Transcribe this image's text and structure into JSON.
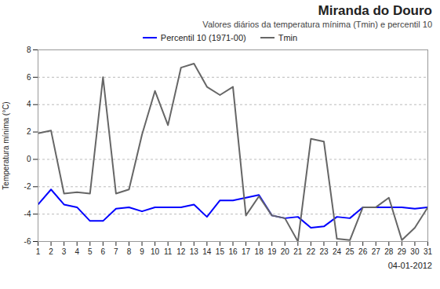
{
  "chart_data": {
    "type": "line",
    "title": "Miranda do Douro",
    "subtitle": "Valores diários da temperatura mínima (Tmin) e percentil 10",
    "annotations": [
      "04-01-2012"
    ],
    "ylabel": "Temperatura mínima (°C)",
    "x": [
      1,
      2,
      3,
      4,
      5,
      6,
      7,
      8,
      9,
      10,
      11,
      12,
      13,
      14,
      15,
      16,
      17,
      18,
      19,
      20,
      21,
      22,
      23,
      24,
      25,
      26,
      27,
      28,
      29,
      30,
      31
    ],
    "series": [
      {
        "name": "Percentil 10 (1971-00)",
        "color": "#0000ff",
        "values": [
          -3.3,
          -2.2,
          -3.3,
          -3.5,
          -4.5,
          -4.5,
          -3.6,
          -3.5,
          -3.8,
          -3.5,
          -3.5,
          -3.5,
          -3.3,
          -4.2,
          -3.0,
          -3.0,
          -2.8,
          -2.6,
          -4.1,
          -4.3,
          -4.2,
          -5.0,
          -4.9,
          -4.2,
          -4.3,
          -3.5,
          -3.5,
          -3.5,
          -3.5,
          -3.6,
          -3.5
        ]
      },
      {
        "name": "Tmin",
        "color": "#666666",
        "values": [
          1.9,
          2.1,
          -2.5,
          -2.4,
          -2.5,
          6.0,
          -2.5,
          -2.2,
          1.8,
          5.0,
          2.5,
          6.7,
          7.0,
          5.3,
          4.7,
          5.3,
          -4.1,
          -2.7,
          -4.1,
          -4.3,
          -6.0,
          1.5,
          1.3,
          -5.8,
          -5.9,
          -3.5,
          -3.5,
          -2.8,
          -5.9,
          -5.0,
          -3.5
        ]
      }
    ],
    "xlim": [
      1,
      31
    ],
    "xticks": [
      1,
      2,
      3,
      4,
      5,
      6,
      7,
      8,
      9,
      10,
      11,
      12,
      13,
      14,
      15,
      16,
      17,
      18,
      19,
      20,
      21,
      22,
      23,
      24,
      25,
      26,
      27,
      28,
      29,
      30,
      31
    ],
    "ylim": [
      -6,
      8
    ],
    "yticks": [
      -6,
      -4,
      -2,
      0,
      2,
      4,
      6,
      8
    ],
    "grid": true,
    "legend": "top"
  }
}
